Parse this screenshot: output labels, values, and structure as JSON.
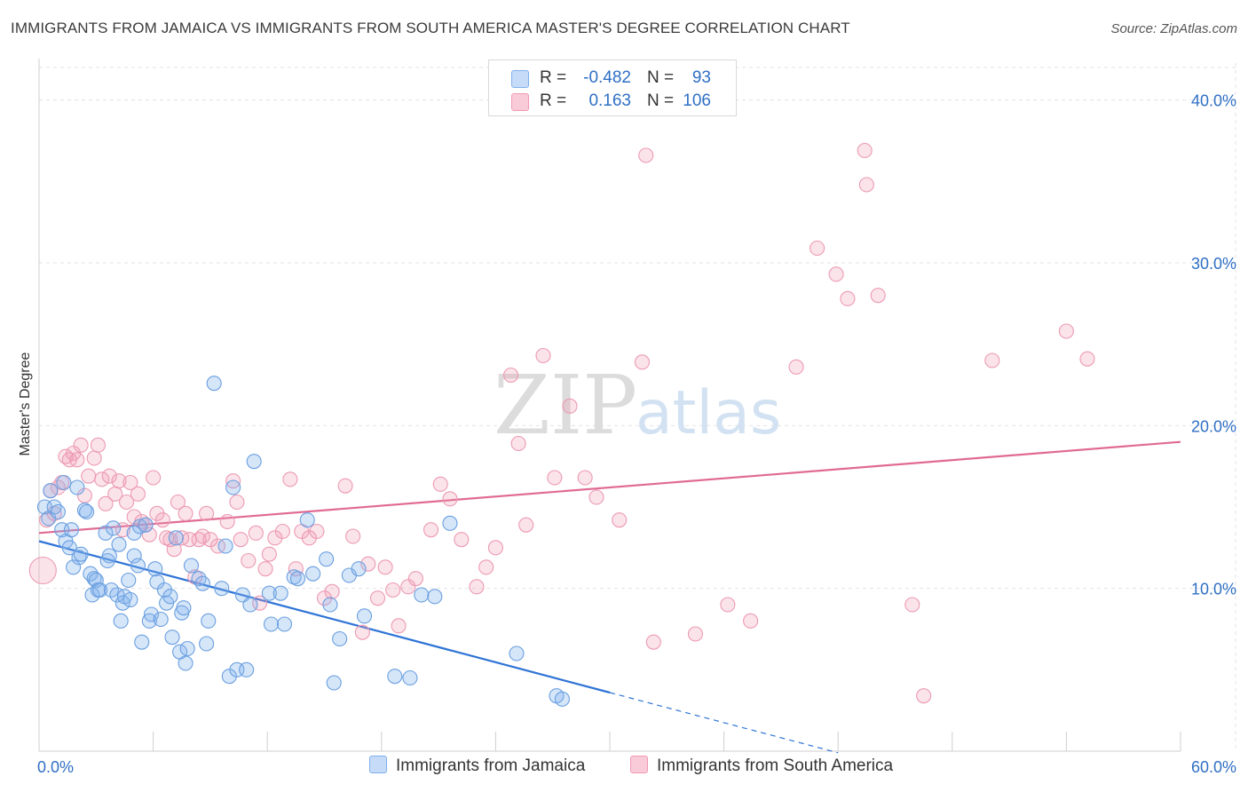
{
  "title": "IMMIGRANTS FROM JAMAICA VS IMMIGRANTS FROM SOUTH AMERICA MASTER'S DEGREE CORRELATION CHART",
  "source": "Source: ZipAtlas.com",
  "watermark": {
    "part1": "ZIP",
    "part2": "atlas"
  },
  "legend": {
    "rows": [
      {
        "r_label": "R =",
        "r_value": "-0.482",
        "n_label": "N =",
        "n_value": "93",
        "color": "#7fb0ec",
        "fill": "#c5dbf7"
      },
      {
        "r_label": "R =",
        "r_value": "0.163",
        "n_label": "N =",
        "n_value": "106",
        "color": "#f09ab4",
        "fill": "#f9cbd9"
      }
    ]
  },
  "bottom_legend": {
    "jamaica": "Immigrants from Jamaica",
    "south_america": "Immigrants from South America"
  },
  "colors": {
    "blue_stroke": "#6a9fe0",
    "blue_fill": "rgba(127,176,236,0.32)",
    "blue_line": "#2f74d6",
    "pink_stroke": "#ec9ab3",
    "pink_fill": "rgba(240,154,180,0.28)",
    "pink_line": "#e06a94",
    "grid": "#e3e3e3",
    "axis_text": "#2f6fc4"
  },
  "chart_data": {
    "type": "scatter",
    "title": "IMMIGRANTS FROM JAMAICA VS IMMIGRANTS FROM SOUTH AMERICA MASTER'S DEGREE CORRELATION CHART",
    "xlabel": "",
    "ylabel": "Master's Degree",
    "xlim": [
      0,
      60
    ],
    "ylim": [
      0,
      42
    ],
    "x_tick_labels": [
      "0.0%",
      "60.0%"
    ],
    "y_ticks": [
      10,
      20,
      30,
      40
    ],
    "y_tick_labels": [
      "10.0%",
      "20.0%",
      "30.0%",
      "40.0%"
    ],
    "grid": true,
    "legend_position": "top-center",
    "series": [
      {
        "name": "Immigrants from Jamaica",
        "r": -0.482,
        "n": 93,
        "trend": {
          "x0": 0,
          "y0": 12.9,
          "x1": 30,
          "y1": 3.6,
          "dash_x1": 42,
          "dash_y1": -0.1
        },
        "points": [
          [
            0.3,
            15.0
          ],
          [
            0.5,
            14.3
          ],
          [
            0.6,
            16.0
          ],
          [
            0.8,
            15.0
          ],
          [
            1.0,
            14.7
          ],
          [
            1.2,
            13.6
          ],
          [
            1.3,
            16.5
          ],
          [
            1.4,
            12.9
          ],
          [
            1.6,
            12.5
          ],
          [
            1.7,
            13.6
          ],
          [
            1.8,
            11.3
          ],
          [
            2.0,
            16.2
          ],
          [
            2.1,
            11.9
          ],
          [
            2.2,
            12.1
          ],
          [
            2.4,
            14.8
          ],
          [
            2.5,
            14.7
          ],
          [
            2.7,
            10.9
          ],
          [
            2.8,
            9.6
          ],
          [
            2.9,
            10.6
          ],
          [
            3.0,
            10.5
          ],
          [
            3.1,
            9.9
          ],
          [
            3.2,
            9.9
          ],
          [
            3.5,
            13.4
          ],
          [
            3.6,
            11.7
          ],
          [
            3.7,
            12.0
          ],
          [
            3.8,
            9.9
          ],
          [
            3.9,
            13.7
          ],
          [
            4.1,
            9.6
          ],
          [
            4.2,
            12.7
          ],
          [
            4.3,
            8.0
          ],
          [
            4.4,
            9.1
          ],
          [
            4.5,
            9.5
          ],
          [
            4.7,
            10.5
          ],
          [
            4.8,
            9.3
          ],
          [
            5.0,
            12.0
          ],
          [
            5.0,
            13.4
          ],
          [
            5.2,
            11.4
          ],
          [
            5.3,
            13.8
          ],
          [
            5.4,
            6.7
          ],
          [
            5.6,
            13.9
          ],
          [
            5.8,
            8.0
          ],
          [
            5.9,
            8.4
          ],
          [
            6.1,
            11.2
          ],
          [
            6.2,
            10.4
          ],
          [
            6.4,
            8.1
          ],
          [
            6.6,
            9.9
          ],
          [
            6.7,
            9.1
          ],
          [
            6.9,
            9.5
          ],
          [
            7.0,
            7.0
          ],
          [
            7.2,
            13.1
          ],
          [
            7.4,
            6.1
          ],
          [
            7.5,
            8.5
          ],
          [
            7.6,
            8.8
          ],
          [
            7.7,
            5.4
          ],
          [
            7.8,
            6.3
          ],
          [
            8.0,
            11.4
          ],
          [
            8.4,
            10.6
          ],
          [
            8.6,
            10.3
          ],
          [
            8.8,
            6.6
          ],
          [
            8.9,
            8.0
          ],
          [
            9.2,
            22.6
          ],
          [
            9.6,
            10.0
          ],
          [
            9.8,
            12.6
          ],
          [
            10.0,
            4.6
          ],
          [
            10.2,
            16.2
          ],
          [
            10.4,
            5.0
          ],
          [
            10.7,
            9.6
          ],
          [
            10.9,
            5.0
          ],
          [
            11.1,
            9.0
          ],
          [
            11.3,
            17.8
          ],
          [
            12.1,
            9.7
          ],
          [
            12.2,
            7.8
          ],
          [
            12.7,
            9.7
          ],
          [
            12.9,
            7.8
          ],
          [
            13.4,
            10.7
          ],
          [
            13.6,
            10.6
          ],
          [
            14.1,
            14.2
          ],
          [
            14.4,
            10.9
          ],
          [
            15.1,
            11.8
          ],
          [
            15.3,
            9.0
          ],
          [
            15.5,
            4.2
          ],
          [
            15.8,
            6.9
          ],
          [
            16.3,
            10.8
          ],
          [
            16.8,
            11.2
          ],
          [
            17.1,
            8.3
          ],
          [
            18.7,
            4.6
          ],
          [
            19.5,
            4.5
          ],
          [
            20.1,
            9.6
          ],
          [
            20.8,
            9.5
          ],
          [
            21.6,
            14.0
          ],
          [
            25.1,
            6.0
          ],
          [
            27.2,
            3.4
          ],
          [
            27.5,
            3.2
          ]
        ]
      },
      {
        "name": "Immigrants from South America",
        "r": 0.163,
        "n": 106,
        "trend": {
          "x0": 0,
          "y0": 13.4,
          "x1": 60,
          "y1": 19.0
        },
        "points": [
          [
            0.2,
            11.1
          ],
          [
            0.4,
            14.2
          ],
          [
            0.6,
            16.0
          ],
          [
            0.8,
            14.6
          ],
          [
            1.0,
            16.2
          ],
          [
            1.2,
            16.5
          ],
          [
            1.4,
            18.1
          ],
          [
            1.6,
            17.9
          ],
          [
            1.8,
            18.3
          ],
          [
            2.0,
            17.9
          ],
          [
            2.2,
            18.8
          ],
          [
            2.4,
            15.7
          ],
          [
            2.6,
            16.9
          ],
          [
            2.9,
            18.0
          ],
          [
            3.1,
            18.8
          ],
          [
            3.3,
            16.7
          ],
          [
            3.5,
            15.2
          ],
          [
            3.7,
            16.9
          ],
          [
            4.0,
            15.8
          ],
          [
            4.2,
            16.6
          ],
          [
            4.4,
            13.6
          ],
          [
            4.6,
            15.3
          ],
          [
            4.8,
            16.5
          ],
          [
            5.0,
            14.4
          ],
          [
            5.2,
            15.8
          ],
          [
            5.4,
            14.1
          ],
          [
            5.6,
            13.9
          ],
          [
            5.8,
            13.3
          ],
          [
            6.0,
            16.8
          ],
          [
            6.2,
            14.6
          ],
          [
            6.5,
            14.2
          ],
          [
            6.7,
            13.1
          ],
          [
            6.9,
            13.0
          ],
          [
            7.1,
            12.4
          ],
          [
            7.3,
            15.3
          ],
          [
            7.5,
            13.1
          ],
          [
            7.7,
            14.6
          ],
          [
            7.9,
            13.0
          ],
          [
            8.2,
            10.7
          ],
          [
            8.4,
            13.0
          ],
          [
            8.6,
            13.2
          ],
          [
            8.8,
            14.6
          ],
          [
            9.0,
            13.0
          ],
          [
            9.4,
            12.6
          ],
          [
            9.9,
            14.1
          ],
          [
            10.2,
            16.6
          ],
          [
            10.4,
            15.3
          ],
          [
            10.6,
            13.0
          ],
          [
            11.0,
            11.7
          ],
          [
            11.4,
            13.4
          ],
          [
            11.6,
            9.1
          ],
          [
            11.9,
            11.2
          ],
          [
            12.1,
            12.1
          ],
          [
            12.4,
            13.1
          ],
          [
            12.8,
            13.5
          ],
          [
            13.2,
            16.7
          ],
          [
            13.5,
            11.2
          ],
          [
            13.8,
            13.5
          ],
          [
            14.2,
            13.1
          ],
          [
            14.6,
            13.5
          ],
          [
            15.0,
            9.4
          ],
          [
            15.4,
            9.8
          ],
          [
            16.1,
            16.3
          ],
          [
            16.5,
            13.2
          ],
          [
            17.0,
            7.3
          ],
          [
            17.3,
            11.5
          ],
          [
            17.8,
            9.4
          ],
          [
            18.2,
            11.3
          ],
          [
            18.6,
            9.9
          ],
          [
            18.9,
            7.7
          ],
          [
            19.4,
            10.1
          ],
          [
            19.8,
            10.6
          ],
          [
            20.6,
            13.6
          ],
          [
            21.1,
            16.4
          ],
          [
            21.6,
            15.5
          ],
          [
            22.2,
            13.0
          ],
          [
            23.0,
            10.1
          ],
          [
            23.5,
            11.3
          ],
          [
            24.0,
            12.5
          ],
          [
            24.8,
            23.1
          ],
          [
            25.2,
            18.9
          ],
          [
            25.6,
            13.9
          ],
          [
            26.5,
            24.3
          ],
          [
            27.1,
            16.8
          ],
          [
            27.9,
            21.2
          ],
          [
            28.7,
            16.8
          ],
          [
            29.3,
            15.6
          ],
          [
            30.5,
            14.2
          ],
          [
            31.7,
            23.9
          ],
          [
            31.9,
            36.6
          ],
          [
            32.3,
            6.7
          ],
          [
            34.5,
            7.2
          ],
          [
            36.2,
            9.0
          ],
          [
            37.4,
            8.0
          ],
          [
            39.8,
            23.6
          ],
          [
            40.9,
            30.9
          ],
          [
            41.9,
            29.3
          ],
          [
            42.5,
            27.8
          ],
          [
            43.4,
            36.9
          ],
          [
            43.5,
            34.8
          ],
          [
            44.1,
            28.0
          ],
          [
            45.9,
            9.0
          ],
          [
            46.5,
            3.4
          ],
          [
            50.1,
            24.0
          ],
          [
            54.0,
            25.8
          ],
          [
            55.1,
            24.1
          ]
        ]
      }
    ]
  }
}
